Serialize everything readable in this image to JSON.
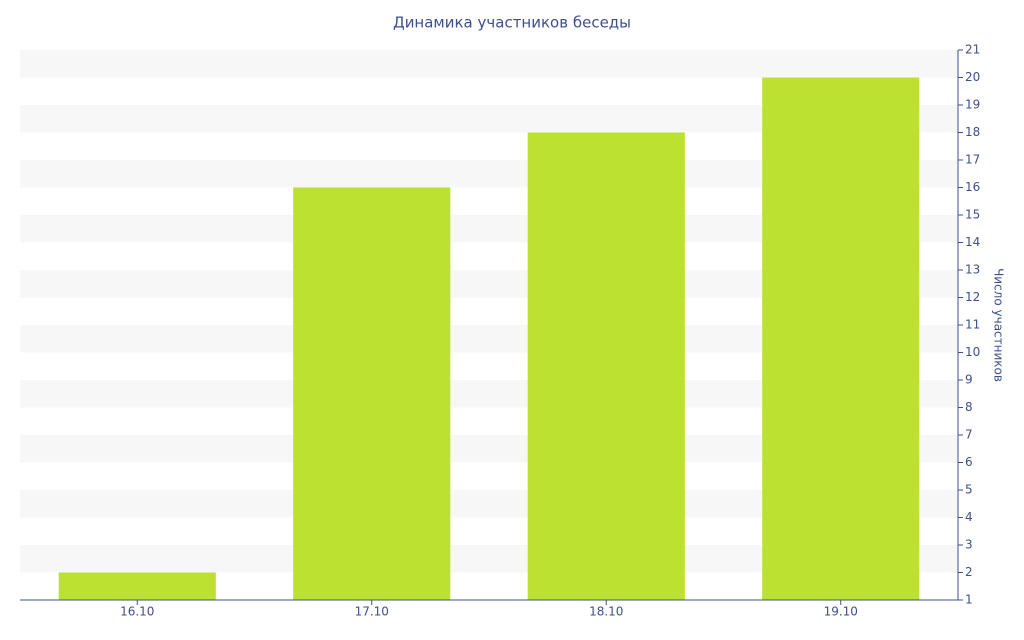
{
  "chart_data": {
    "type": "bar",
    "title": "Динамика участников беседы",
    "y_axis_label": "Число участников",
    "categories": [
      "16.10",
      "17.10",
      "18.10",
      "19.10"
    ],
    "values": [
      2,
      16,
      18,
      20
    ],
    "color": "#bde130",
    "ylim": [
      1,
      21
    ],
    "yticks": [
      1,
      2,
      3,
      4,
      5,
      6,
      7,
      8,
      9,
      10,
      11,
      12,
      13,
      14,
      15,
      16,
      17,
      18,
      19,
      20,
      21
    ],
    "y_axis_side": "right",
    "grid": true
  }
}
